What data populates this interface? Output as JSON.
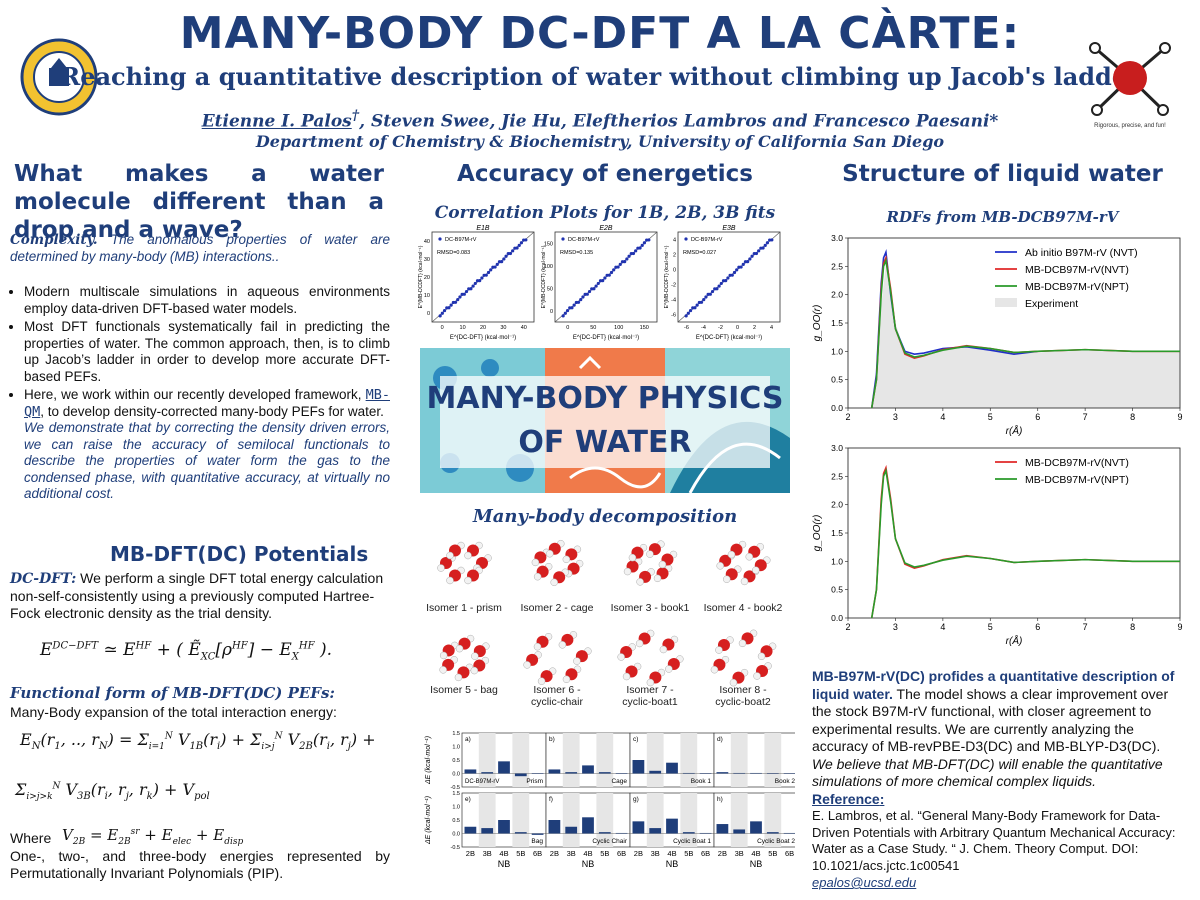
{
  "header": {
    "title": "MANY-BODY DC-DFT A LA CÀRTE:",
    "subtitle": "Reaching a quantitative description of water without climbing up Jacob's ladder",
    "authors_lead": "Etienne I. Palos",
    "authors_lead_mark": "†",
    "authors_rest": ",  Steven Swee, Jie Hu, Eleftherios Lambros and Francesco Paesani*",
    "department": "Department of Chemistry & Biochemistry, University of California San Diego",
    "logo_left": "UNIVERSITY OF CALIFORNIA SAN DIEGO",
    "logo_right_caption": "Rigorous, precise, and fun!"
  },
  "left": {
    "heading": "What makes a water molecule different than a drop and a wave?",
    "complexity_label": "Complexity.",
    "complexity_text": "The anomalous properties of water are determined by many-body (MB) interactions..",
    "bullets": [
      "Modern multiscale simulations in aqueous environments employ data-driven DFT-based water models.",
      "Most DFT functionals systematically fail in predicting the properties of water. The common approach, then, is to climb up Jacob’s ladder in order to develop more accurate DFT-based PEFs."
    ],
    "bullet3_pre": "Here, we work within our recently developed framework,",
    "bullet3_link": "MB-QM",
    "bullet3_post": ", to develop density-corrected many-body PEFs for water.",
    "bullet3_italic": "We demonstrate that by correcting the density driven errors, we can raise the accuracy of semilocal functionals to describe the properties of water form the gas to the condensed phase, with quantitative accuracy, at virtually no additional cost.",
    "mb_heading": "MB-DFT(DC) Potentials",
    "dcdft_label": "DC-DFT:",
    "dcdft_text": "We perform a single DFT total energy calculation non-self-consistently using a previously computed Hartree-Fock electronic density as the trial density.",
    "functional_heading": "Functional form of MB-DFT(DC) PEFs:",
    "functional_text": "Many-Body expansion of the total interaction energy:",
    "where": "Where",
    "closing": "One-, two-, and three-body energies represented by Permutationally Invariant Polynomials (PIP)."
  },
  "middle": {
    "heading": "Accuracy of energetics",
    "corr_heading": "Correlation Plots for 1B, 2B, 3B fits",
    "corr_plots": [
      {
        "panel": "E1B",
        "legend": "DC-B97M-rV",
        "rmsd": "RMSD=0.083",
        "xticks": [
          "0",
          "10",
          "20",
          "30",
          "40"
        ],
        "yticks": [
          "0",
          "10",
          "20",
          "30",
          "40"
        ]
      },
      {
        "panel": "E2B",
        "legend": "DC-B97M-rV",
        "rmsd": "RMSD=0.135",
        "xticks": [
          "0",
          "50",
          "100",
          "150"
        ],
        "yticks": [
          "0",
          "50",
          "100",
          "150"
        ]
      },
      {
        "panel": "E3B",
        "legend": "DC-B97M-rV",
        "rmsd": "RMSD=0.027",
        "xticks": [
          "-6",
          "-4",
          "-2",
          "0",
          "2",
          "4"
        ],
        "yticks": [
          "-6",
          "-4",
          "-2",
          "0",
          "2",
          "4"
        ]
      }
    ],
    "corr_xlabel": "E^{DC-DFT} (kcal·mol⁻¹)",
    "corr_ylabel": "E^{MB-DCDFT} (kcal·mol⁻¹)",
    "banner_line1": "MANY-BODY PHYSICS",
    "banner_line2": "OF WATER",
    "decomp_heading": "Many-body decomposition",
    "isomers": [
      "Isomer 1 - prism",
      "Isomer 2 - cage",
      "Isomer 3 - book1",
      "Isomer 4 - book2",
      "Isomer 5 - bag",
      "Isomer 6 - cyclic-chair",
      "Isomer 7 - cyclic-boat1",
      "Isomer 8 - cyclic-boat2"
    ],
    "bar_panels": [
      {
        "tag": "a)",
        "name": "Prism",
        "legend": "DC-B97M-rV",
        "values": [
          0.15,
          0.05,
          0.45,
          -0.1,
          0.01
        ]
      },
      {
        "tag": "b)",
        "name": "Cage",
        "values": [
          0.15,
          0.05,
          0.3,
          0.05,
          0.01
        ]
      },
      {
        "tag": "c)",
        "name": "Book 1",
        "values": [
          0.5,
          0.1,
          0.4,
          0.02,
          0.01
        ]
      },
      {
        "tag": "d)",
        "name": "Book 2",
        "values": [
          0.05,
          0.02,
          0.02,
          0.01,
          0.0
        ]
      },
      {
        "tag": "e)",
        "name": "Bag",
        "values": [
          0.25,
          0.2,
          0.5,
          0.05,
          -0.05
        ]
      },
      {
        "tag": "f)",
        "name": "Cyclic Chair",
        "values": [
          0.5,
          0.25,
          0.6,
          0.05,
          0.02
        ]
      },
      {
        "tag": "g)",
        "name": "Cyclic Boat 1",
        "values": [
          0.45,
          0.2,
          0.55,
          0.05,
          0.02
        ]
      },
      {
        "tag": "h)",
        "name": "Cyclic Boat 2",
        "values": [
          0.35,
          0.15,
          0.45,
          0.05,
          0.02
        ]
      }
    ],
    "bar_yticks": [
      "1.5",
      "1.0",
      "0.5",
      "0.0",
      "-0.5"
    ],
    "bar_categories": [
      "2B",
      "3B",
      "4B",
      "5B",
      "6B"
    ],
    "bar_xlabel": "NB",
    "bar_ylabel": "ΔE (kcal·mol⁻¹)",
    "bar_color": "#1f3e7a"
  },
  "right": {
    "heading": "Structure of liquid water",
    "rdf_heading": "RDFs from MB-DCB97M-rV",
    "plot1_legend": [
      "Ab initio B97M-rV (NVT)",
      "MB-DCB97M-rV(NVT)",
      "MB-DCB97M-rV(NPT)",
      "Experiment"
    ],
    "plot2_legend": [
      "MB-DCB97M-rV(NVT)",
      "MB-DCB97M-rV(NPT)"
    ],
    "xticks": [
      "2",
      "3",
      "4",
      "5",
      "6",
      "7",
      "8",
      "9"
    ],
    "yticks": [
      "0.0",
      "0.5",
      "1.0",
      "1.5",
      "2.0",
      "2.5",
      "3.0"
    ],
    "xlabel": "r(Å)",
    "ylabel": "g_OO(r)",
    "colors": {
      "blue": "#2030c8",
      "red": "#e02828",
      "green": "#2a9a2a",
      "exp": "#e6e6e6"
    },
    "summary_bold": "MB-B97M-rV(DC) profides a quantitative description of liquid water.",
    "summary_text": "The model shows a clear improvement over the stock B97M-rV functional, with closer agreement to experimental results. We are currently analyzing the accuracy of MB-revPBE-D3(DC) and MB-BLYP-D3(DC).",
    "summary_italic": "We believe that MB-DFT(DC) will enable the quantitative simulations of  more chemical complex liquids.",
    "reference_label": "Reference",
    "reference_text": "E. Lambros, et al. “General Many-Body Framework for Data-Driven Potentials with Arbitrary Quantum Mechanical Accuracy: Water as a Case Study. “ J. Chem. Theory Comput. DOI: 10.1021/acs.jctc.1c00541",
    "email": "epalos@ucsd.edu"
  },
  "chart_data": [
    {
      "type": "line",
      "title": "RDFs from MB-DCB97M-rV",
      "xlabel": "r(Å)",
      "ylabel": "g_OO(r)",
      "xlim": [
        2,
        9
      ],
      "ylim": [
        0,
        3.0
      ],
      "series": [
        {
          "name": "Ab initio B97M-rV (NVT)",
          "x": [
            2.5,
            2.6,
            2.7,
            2.75,
            2.8,
            2.9,
            3.0,
            3.2,
            3.4,
            3.6,
            4.0,
            4.5,
            5.0,
            5.5,
            6.0
          ],
          "y": [
            0.0,
            0.6,
            2.2,
            2.65,
            2.75,
            2.0,
            1.4,
            1.0,
            0.95,
            0.97,
            1.05,
            1.08,
            1.02,
            0.95,
            1.0
          ]
        },
        {
          "name": "MB-DCB97M-rV(NVT)",
          "x": [
            2.5,
            2.6,
            2.7,
            2.75,
            2.8,
            2.9,
            3.0,
            3.2,
            3.4,
            3.6,
            4.0,
            4.5,
            5.0,
            5.5,
            6.0,
            7.0,
            8.0,
            9.0
          ],
          "y": [
            0.0,
            0.5,
            2.1,
            2.55,
            2.65,
            2.1,
            1.4,
            0.95,
            0.88,
            0.92,
            1.03,
            1.1,
            1.05,
            0.98,
            1.0,
            1.03,
            1.0,
            1.0
          ]
        },
        {
          "name": "MB-DCB97M-rV(NPT)",
          "x": [
            2.5,
            2.6,
            2.7,
            2.75,
            2.8,
            2.9,
            3.0,
            3.2,
            3.4,
            3.6,
            4.0,
            4.5,
            5.0,
            5.5,
            6.0,
            7.0,
            8.0,
            9.0
          ],
          "y": [
            0.0,
            0.5,
            2.0,
            2.5,
            2.6,
            2.05,
            1.4,
            0.97,
            0.9,
            0.93,
            1.02,
            1.09,
            1.05,
            0.98,
            1.0,
            1.03,
            1.0,
            1.0
          ]
        },
        {
          "name": "Experiment",
          "x": [
            2.5,
            2.6,
            2.7,
            2.8,
            2.9,
            3.0,
            3.2,
            3.4,
            3.6,
            4.0,
            4.5,
            5.0,
            5.5,
            6.0,
            7.0,
            8.0,
            9.0
          ],
          "y": [
            0.0,
            0.4,
            1.8,
            2.55,
            2.2,
            1.5,
            0.98,
            0.88,
            0.92,
            1.02,
            1.1,
            1.06,
            0.98,
            0.98,
            1.03,
            1.0,
            1.0
          ]
        }
      ]
    },
    {
      "type": "line",
      "xlabel": "r(Å)",
      "ylabel": "g_OO(r)",
      "xlim": [
        2,
        9
      ],
      "ylim": [
        0,
        3.0
      ],
      "series": [
        {
          "name": "MB-DCB97M-rV(NVT)",
          "x": [
            2.5,
            2.6,
            2.7,
            2.75,
            2.8,
            2.9,
            3.0,
            3.2,
            3.4,
            3.6,
            4.0,
            4.5,
            5.0,
            5.5,
            6.0,
            7.0,
            8.0,
            9.0
          ],
          "y": [
            0.0,
            0.5,
            2.1,
            2.55,
            2.65,
            2.1,
            1.4,
            0.95,
            0.88,
            0.92,
            1.03,
            1.1,
            1.05,
            0.98,
            1.0,
            1.03,
            1.0,
            1.0
          ]
        },
        {
          "name": "MB-DCB97M-rV(NPT)",
          "x": [
            2.5,
            2.6,
            2.7,
            2.75,
            2.8,
            2.9,
            3.0,
            3.2,
            3.4,
            3.6,
            4.0,
            4.5,
            5.0,
            5.5,
            6.0,
            7.0,
            8.0,
            9.0
          ],
          "y": [
            0.0,
            0.5,
            2.0,
            2.5,
            2.6,
            2.05,
            1.4,
            0.97,
            0.9,
            0.93,
            1.02,
            1.09,
            1.05,
            0.98,
            1.0,
            1.03,
            1.0,
            1.0
          ]
        }
      ]
    }
  ]
}
